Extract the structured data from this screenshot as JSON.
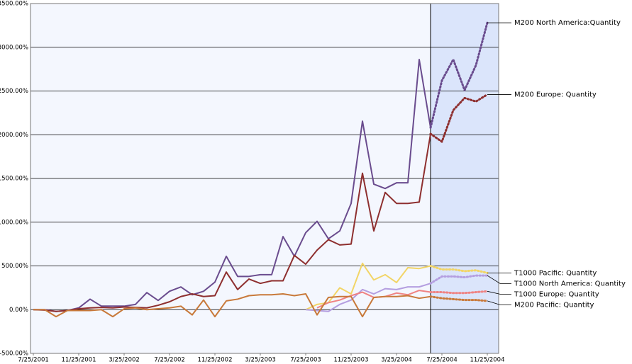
{
  "chart_data": {
    "type": "line",
    "categories": [
      "7/25/2001",
      null,
      null,
      null,
      "11/25/2001",
      null,
      null,
      null,
      "3/25/2002",
      null,
      null,
      null,
      "7/25/2002",
      null,
      null,
      null,
      "11/25/2002",
      null,
      null,
      null,
      "3/25/2003",
      null,
      null,
      null,
      "7/25/2003",
      null,
      null,
      null,
      "11/25/2003",
      null,
      null,
      null,
      "3/25/2004",
      null,
      null,
      null,
      "7/25/2004",
      null,
      null,
      null,
      "11/25/2004"
    ],
    "forecast_start": "7/25/2004",
    "ylim": [
      -500,
      3500
    ],
    "yticks": [
      {
        "value": -500,
        "label": "-500.00%"
      },
      {
        "value": 0,
        "label": "0.00%"
      },
      {
        "value": 500,
        "label": "500.00%"
      },
      {
        "value": 1000,
        "label": "1000.00%"
      },
      {
        "value": 1500,
        "label": "1500.00%"
      },
      {
        "value": 2000,
        "label": "2000.00%"
      },
      {
        "value": 2500,
        "label": "2500.00%"
      },
      {
        "value": 3000,
        "label": "3000.00%"
      },
      {
        "value": 3500,
        "label": "3500.00%"
      }
    ],
    "grid": true,
    "series": [
      {
        "name": "M200 North America:Quantity",
        "color": "#6a4c8e",
        "values": [
          0,
          0,
          -20,
          -10,
          20,
          120,
          40,
          40,
          40,
          60,
          195,
          105,
          210,
          260,
          170,
          210,
          315,
          610,
          380,
          380,
          400,
          400,
          835,
          610,
          880,
          1010,
          810,
          900,
          1215,
          2155,
          1435,
          1385,
          1450,
          1450,
          2860,
          2080,
          2620,
          2860,
          2510,
          2795,
          3280
        ]
      },
      {
        "name": "M200 Europe: Quantity",
        "color": "#8e2f2f",
        "values": [
          0,
          -5,
          -20,
          -10,
          10,
          20,
          25,
          20,
          30,
          25,
          20,
          50,
          90,
          150,
          180,
          150,
          160,
          430,
          230,
          350,
          300,
          330,
          330,
          620,
          520,
          680,
          800,
          740,
          750,
          1560,
          900,
          1340,
          1215,
          1215,
          1230,
          2010,
          1920,
          2280,
          2420,
          2380,
          2460
        ]
      },
      {
        "name": "T1000 Pacific: Quantity",
        "color": "#f2d567",
        "values": [
          null,
          null,
          null,
          null,
          null,
          null,
          null,
          null,
          null,
          null,
          null,
          null,
          null,
          null,
          null,
          null,
          null,
          null,
          null,
          null,
          null,
          null,
          null,
          null,
          0,
          60,
          80,
          250,
          180,
          530,
          340,
          400,
          310,
          480,
          470,
          500,
          460,
          460,
          440,
          450,
          420
        ]
      },
      {
        "name": "T1000 North America: Quantity",
        "color": "#b49ee0",
        "values": [
          null,
          null,
          null,
          null,
          null,
          null,
          null,
          null,
          null,
          null,
          null,
          null,
          null,
          null,
          null,
          null,
          null,
          null,
          null,
          null,
          null,
          null,
          null,
          null,
          0,
          -10,
          -20,
          60,
          110,
          230,
          180,
          240,
          230,
          260,
          260,
          300,
          380,
          380,
          370,
          390,
          390
        ]
      },
      {
        "name": "T1000 Europe: Quantity",
        "color": "#ef8383",
        "values": [
          null,
          null,
          null,
          null,
          null,
          null,
          null,
          null,
          null,
          null,
          null,
          null,
          null,
          null,
          null,
          null,
          null,
          null,
          null,
          null,
          null,
          null,
          null,
          null,
          null,
          20,
          80,
          110,
          160,
          200,
          140,
          150,
          190,
          170,
          220,
          200,
          200,
          190,
          190,
          200,
          210
        ]
      },
      {
        "name": "M200 Pacific: Quantity",
        "color": "#c8793a",
        "values": [
          0,
          0,
          -80,
          -10,
          -10,
          -10,
          0,
          -80,
          10,
          20,
          0,
          10,
          20,
          40,
          -60,
          110,
          -80,
          100,
          120,
          160,
          170,
          170,
          180,
          160,
          180,
          -60,
          140,
          150,
          150,
          -80,
          140,
          150,
          150,
          160,
          130,
          150,
          130,
          120,
          110,
          110,
          100
        ]
      }
    ]
  }
}
